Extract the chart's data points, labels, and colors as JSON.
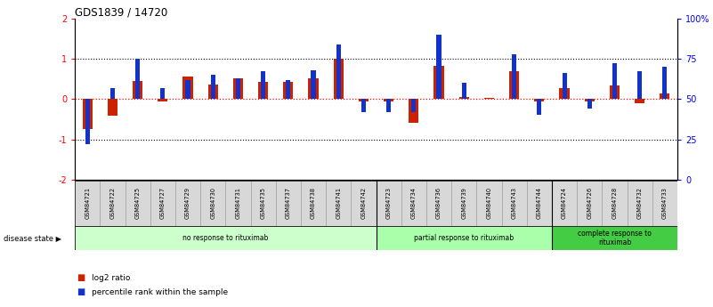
{
  "title": "GDS1839 / 14720",
  "samples": [
    "GSM84721",
    "GSM84722",
    "GSM84725",
    "GSM84727",
    "GSM84729",
    "GSM84730",
    "GSM84731",
    "GSM84735",
    "GSM84737",
    "GSM84738",
    "GSM84741",
    "GSM84742",
    "GSM84723",
    "GSM84734",
    "GSM84736",
    "GSM84739",
    "GSM84740",
    "GSM84743",
    "GSM84744",
    "GSM84724",
    "GSM84726",
    "GSM84728",
    "GSM84732",
    "GSM84733"
  ],
  "log2_ratio": [
    -0.75,
    -0.42,
    0.45,
    -0.05,
    0.55,
    0.35,
    0.52,
    0.42,
    0.42,
    0.52,
    1.0,
    -0.05,
    -0.07,
    -0.6,
    0.82,
    0.05,
    0.02,
    0.68,
    -0.06,
    0.28,
    -0.07,
    0.33,
    -0.1,
    0.13
  ],
  "percentile_rank": [
    22,
    57,
    75,
    57,
    62,
    65,
    63,
    67,
    62,
    68,
    84,
    42,
    42,
    42,
    90,
    60,
    50,
    78,
    40,
    66,
    44,
    72,
    67,
    70
  ],
  "groups": [
    {
      "label": "no response to rituximab",
      "start": 0,
      "end": 12,
      "color": "#ccffcc"
    },
    {
      "label": "partial response to rituximab",
      "start": 12,
      "end": 19,
      "color": "#aaffaa"
    },
    {
      "label": "complete response to\nrituximab",
      "start": 19,
      "end": 24,
      "color": "#44cc44"
    }
  ],
  "bar_color_red": "#cc2200",
  "bar_color_blue": "#1133cc",
  "ylim_left": [
    -2,
    2
  ],
  "yticks_left": [
    -2,
    -1,
    0,
    1,
    2
  ],
  "ytick_labels_right": [
    "0",
    "25",
    "50",
    "75",
    "100%"
  ],
  "disease_state_label": "disease state",
  "legend_red": "log2 ratio",
  "legend_blue": "percentile rank within the sample",
  "background_color": "#ffffff",
  "sample_box_color": "#d8d8d8",
  "bar_width": 0.4
}
